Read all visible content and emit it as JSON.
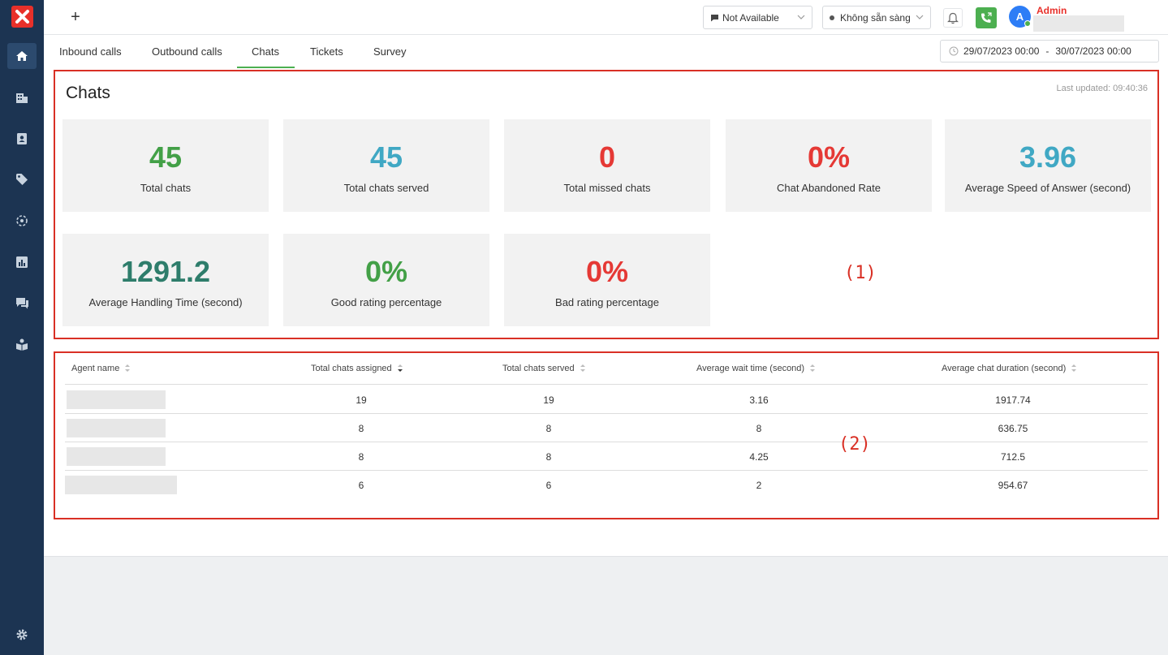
{
  "topbar": {
    "plus_label": "+",
    "status_value": "Not Available",
    "presence_value": "Không sẵn sàng",
    "avatar_initial": "A",
    "user_name": "Admin"
  },
  "tabs": [
    {
      "label": "Inbound calls"
    },
    {
      "label": "Outbound calls"
    },
    {
      "label": "Chats"
    },
    {
      "label": "Tickets"
    },
    {
      "label": "Survey"
    }
  ],
  "date_range": {
    "from": "29/07/2023 00:00",
    "separator": "-",
    "to": "30/07/2023 00:00"
  },
  "section": {
    "title": "Chats",
    "last_updated": "Last updated: 09:40:36"
  },
  "stats": [
    {
      "value": "45",
      "label": "Total chats"
    },
    {
      "value": "45",
      "label": "Total chats served"
    },
    {
      "value": "0",
      "label": "Total missed chats"
    },
    {
      "value": "0%",
      "label": "Chat Abandoned Rate"
    },
    {
      "value": "3.96",
      "label": "Average Speed of Answer (second)"
    },
    {
      "value": "1291.2",
      "label": "Average Handling Time (second)"
    },
    {
      "value": "0%",
      "label": "Good rating percentage"
    },
    {
      "value": "0%",
      "label": "Bad rating percentage"
    }
  ],
  "annotations": {
    "box1": "(1)",
    "box2": "(2)"
  },
  "table": {
    "headers": [
      "Agent name",
      "Total chats assigned",
      "Total chats served",
      "Average wait time (second)",
      "Average chat duration (second)"
    ],
    "rows": [
      {
        "assigned": "19",
        "served": "19",
        "wait": "3.16",
        "duration": "1917.74"
      },
      {
        "assigned": "8",
        "served": "8",
        "wait": "8",
        "duration": "636.75"
      },
      {
        "assigned": "8",
        "served": "8",
        "wait": "4.25",
        "duration": "712.5"
      },
      {
        "assigned": "6",
        "served": "6",
        "wait": "2",
        "duration": "954.67"
      }
    ]
  },
  "colors": {
    "accent_red": "#e53935",
    "accent_green": "#43a047",
    "accent_blue": "#40a8c4",
    "sidebar": "#1c3452",
    "highlight": "#d93025"
  }
}
